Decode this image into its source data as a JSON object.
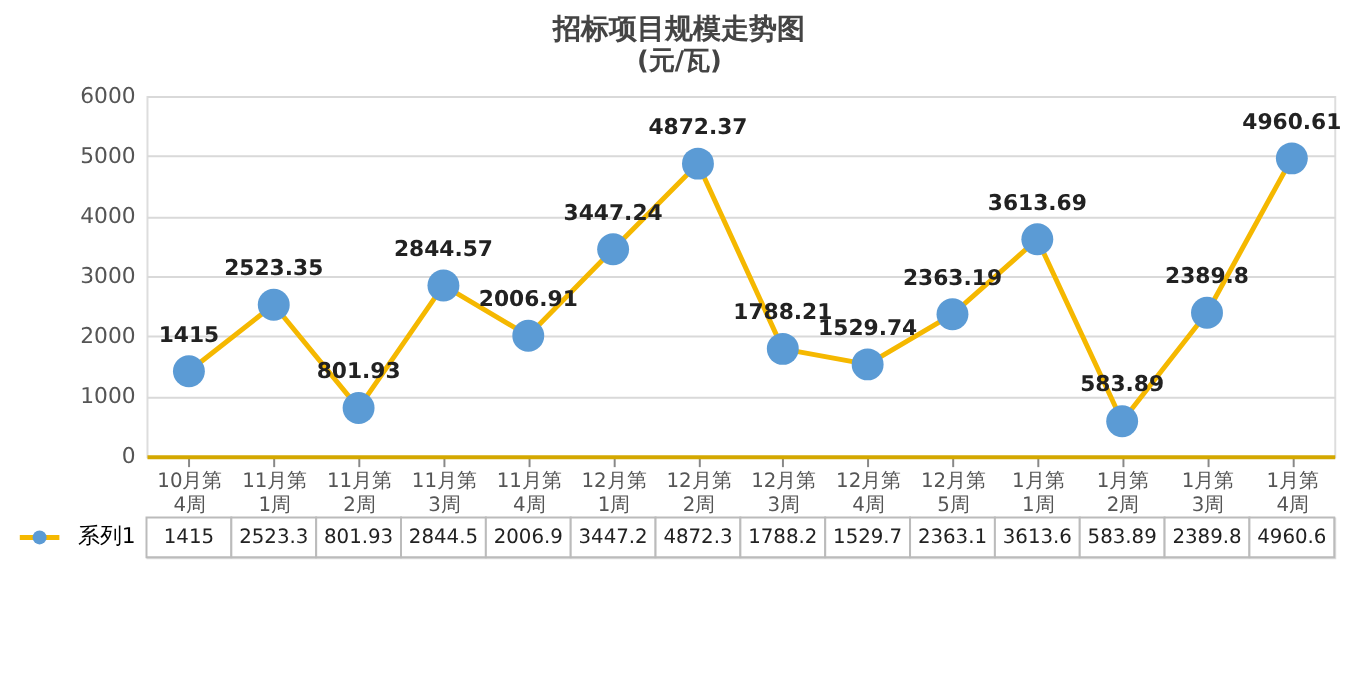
{
  "chart_data": {
    "type": "line",
    "title": "招标项目规模走势图",
    "subtitle": "(元/瓦)",
    "categories": [
      "10月第4周",
      "11月第1周",
      "11月第2周",
      "11月第3周",
      "11月第4周",
      "12月第1周",
      "12月第2周",
      "12月第3周",
      "12月第4周",
      "12月第5周",
      "1月第1周",
      "1月第2周",
      "1月第3周",
      "1月第4周"
    ],
    "series": [
      {
        "name": "系列1",
        "color": "#f5b800",
        "colors": [
          "#5b9bd5",
          "#5b9bd5",
          "#5b9bd5",
          "#5b9bd5",
          "#5b9bd5",
          "#5b9bd5",
          "#5b9bd5",
          "#5b9bd5",
          "#5b9bd5",
          "#5b9bd5",
          "#5b9bd5",
          "#5b9bd5",
          "#5b9bd5",
          "#5b9bd5"
        ],
        "values": [
          1415,
          2523.35,
          801.93,
          2844.57,
          2006.91,
          3447.24,
          4872.37,
          1788.21,
          1529.74,
          2363.19,
          3613.69,
          583.89,
          2389.8,
          4960.61
        ],
        "value_labels": [
          "1415",
          "2523.35",
          "801.93",
          "2844.57",
          "2006.91",
          "3447.24",
          "4872.37",
          "1788.21",
          "1529.74",
          "2363.19",
          "3613.69",
          "583.89",
          "2389.8",
          "4960.61"
        ]
      }
    ],
    "annotations": [
      "1415",
      "2523.3",
      "801.93",
      "2844.5",
      "2006.9",
      "3447.2",
      "4872.3",
      "1788.2",
      "1529.7",
      "2363.1",
      "3613.6",
      "583.89",
      "2389.8",
      "4960.6"
    ],
    "ylim": [
      0,
      6000
    ],
    "yticks": [
      0,
      1000,
      2000,
      3000,
      4000,
      5000,
      6000
    ],
    "grid": "y",
    "legend": "bottom",
    "marker": "circle",
    "line_style": "solid"
  }
}
